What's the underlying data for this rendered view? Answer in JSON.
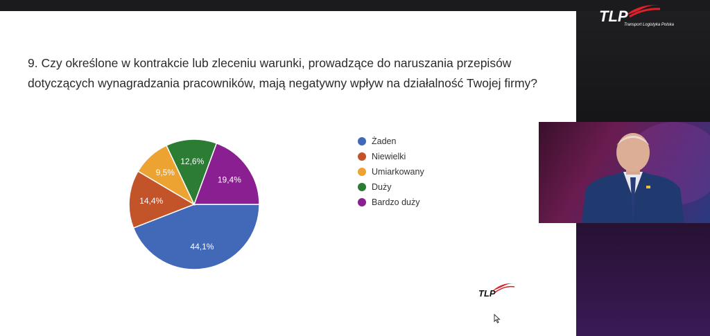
{
  "slide": {
    "question": "9. Czy określone w kontrakcie lub zleceniu warunki, prowadzące do naruszania przepisów\ndotyczących wynagradzania pracowników, mają negatywny wpływ na działalność Twojej firmy?"
  },
  "branding": {
    "logo_text": "TLP",
    "logo_subtitle": "Transport Logistyka Polska"
  },
  "chart_data": {
    "type": "pie",
    "legend_position": "right",
    "slices": [
      {
        "label": "Żaden",
        "value": 44.1,
        "display": "44,1%",
        "color": "#4169b8"
      },
      {
        "label": "Niewielki",
        "value": 14.4,
        "display": "14,4%",
        "color": "#c3542a"
      },
      {
        "label": "Umiarkowany",
        "value": 9.5,
        "display": "9,5%",
        "color": "#eda331"
      },
      {
        "label": "Duży",
        "value": 12.6,
        "display": "12,6%",
        "color": "#2c7c34"
      },
      {
        "label": "Bardzo duży",
        "value": 19.4,
        "display": "19,4%",
        "color": "#8a1f91"
      }
    ]
  }
}
